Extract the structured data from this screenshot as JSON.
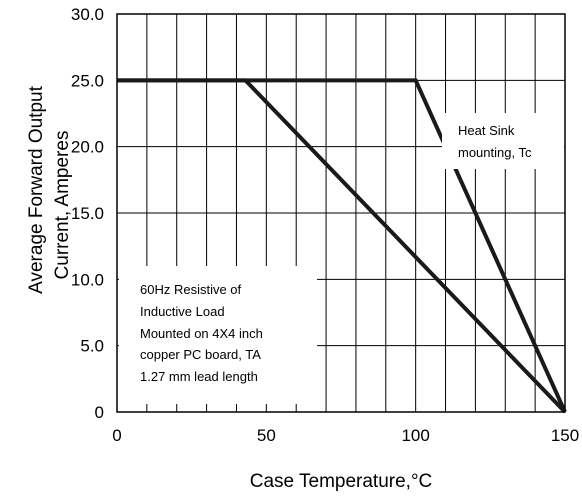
{
  "chart_data": {
    "type": "line",
    "title": "",
    "xlabel": "Case Temperature,°C",
    "ylabel_line1": "Average Forward Output",
    "ylabel_line2": "Current, Amperes",
    "xlim": [
      0,
      150
    ],
    "ylim": [
      0,
      30
    ],
    "x_ticks": [
      "0",
      "50",
      "100",
      "150"
    ],
    "y_ticks": [
      "0",
      "5.0",
      "10.0",
      "15.0",
      "20.0",
      "25.0",
      "30.0"
    ],
    "grid": true,
    "series": [
      {
        "name": "Heat Sink mounting, Tc",
        "points": [
          [
            0,
            25
          ],
          [
            100,
            25
          ],
          [
            150,
            0
          ]
        ]
      },
      {
        "name": "60Hz Resistive of Inductive Load Mounted on 4X4 inch copper PC board, TA 1.27 mm lead length",
        "points": [
          [
            0,
            25
          ],
          [
            43,
            25
          ],
          [
            150,
            0
          ]
        ]
      }
    ],
    "annotations": {
      "heat_sink": [
        "Heat Sink",
        "mounting, Tc"
      ],
      "board": [
        "60Hz Resistive of",
        "Inductive Load",
        "Mounted on 4X4 inch",
        "copper PC board, TA",
        "1.27 mm lead length"
      ]
    },
    "colors": {
      "line": "#1a1a1a",
      "grid": "#000000"
    }
  }
}
